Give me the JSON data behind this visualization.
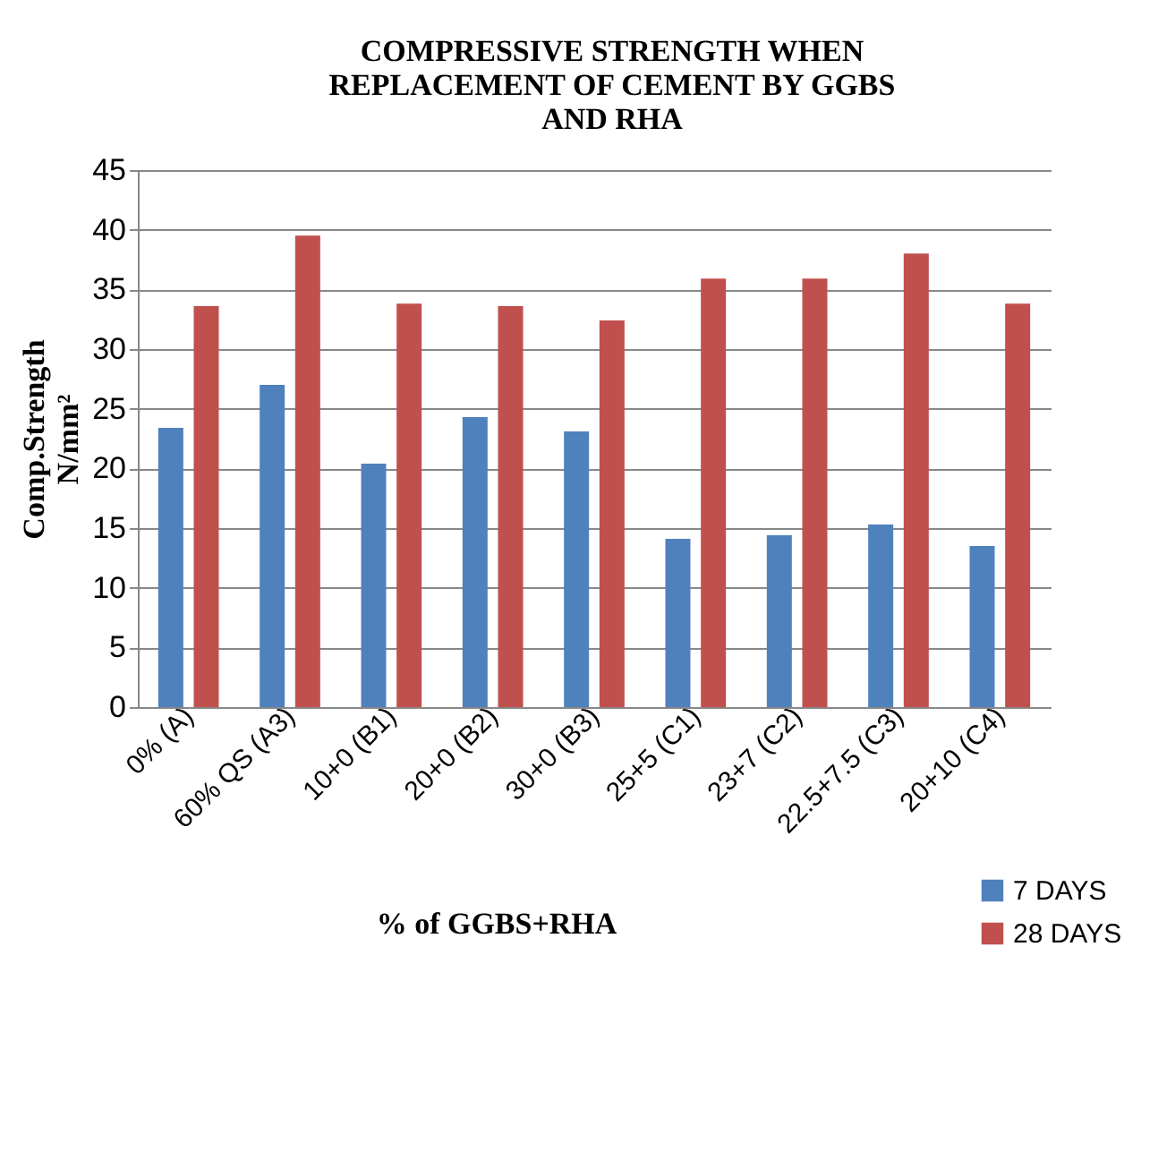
{
  "chart_data": {
    "type": "bar",
    "title": [
      "COMPRESSIVE  STRENGTH  WHEN",
      "REPLACEMENT  OF  CEMENT  BY  GGBS",
      "AND  RHA"
    ],
    "xlabel": "% of GGBS+RHA",
    "ylabel": "Comp.Strength N/mm²",
    "categories": [
      "0% (A)",
      "60% QS (A3)",
      "10+0 (B1)",
      "20+0 (B2)",
      "30+0 (B3)",
      "25+5 (C1)",
      "23+7 (C2)",
      "22.5+7.5 (C3)",
      "20+10 (C4)"
    ],
    "series": [
      {
        "name": "7 DAYS",
        "color": "#4f81bd",
        "values": [
          23.4,
          27.0,
          20.4,
          24.3,
          23.1,
          14.1,
          14.4,
          15.3,
          13.5
        ]
      },
      {
        "name": "28 DAYS",
        "color": "#c0504d",
        "values": [
          33.6,
          39.5,
          33.8,
          33.6,
          32.4,
          35.9,
          35.9,
          38.0,
          33.8
        ]
      }
    ],
    "ylim": [
      0,
      45
    ],
    "yticks": [
      0,
      5,
      10,
      15,
      20,
      25,
      30,
      35,
      40,
      45
    ],
    "grid": "y",
    "legend": "bottom right"
  }
}
